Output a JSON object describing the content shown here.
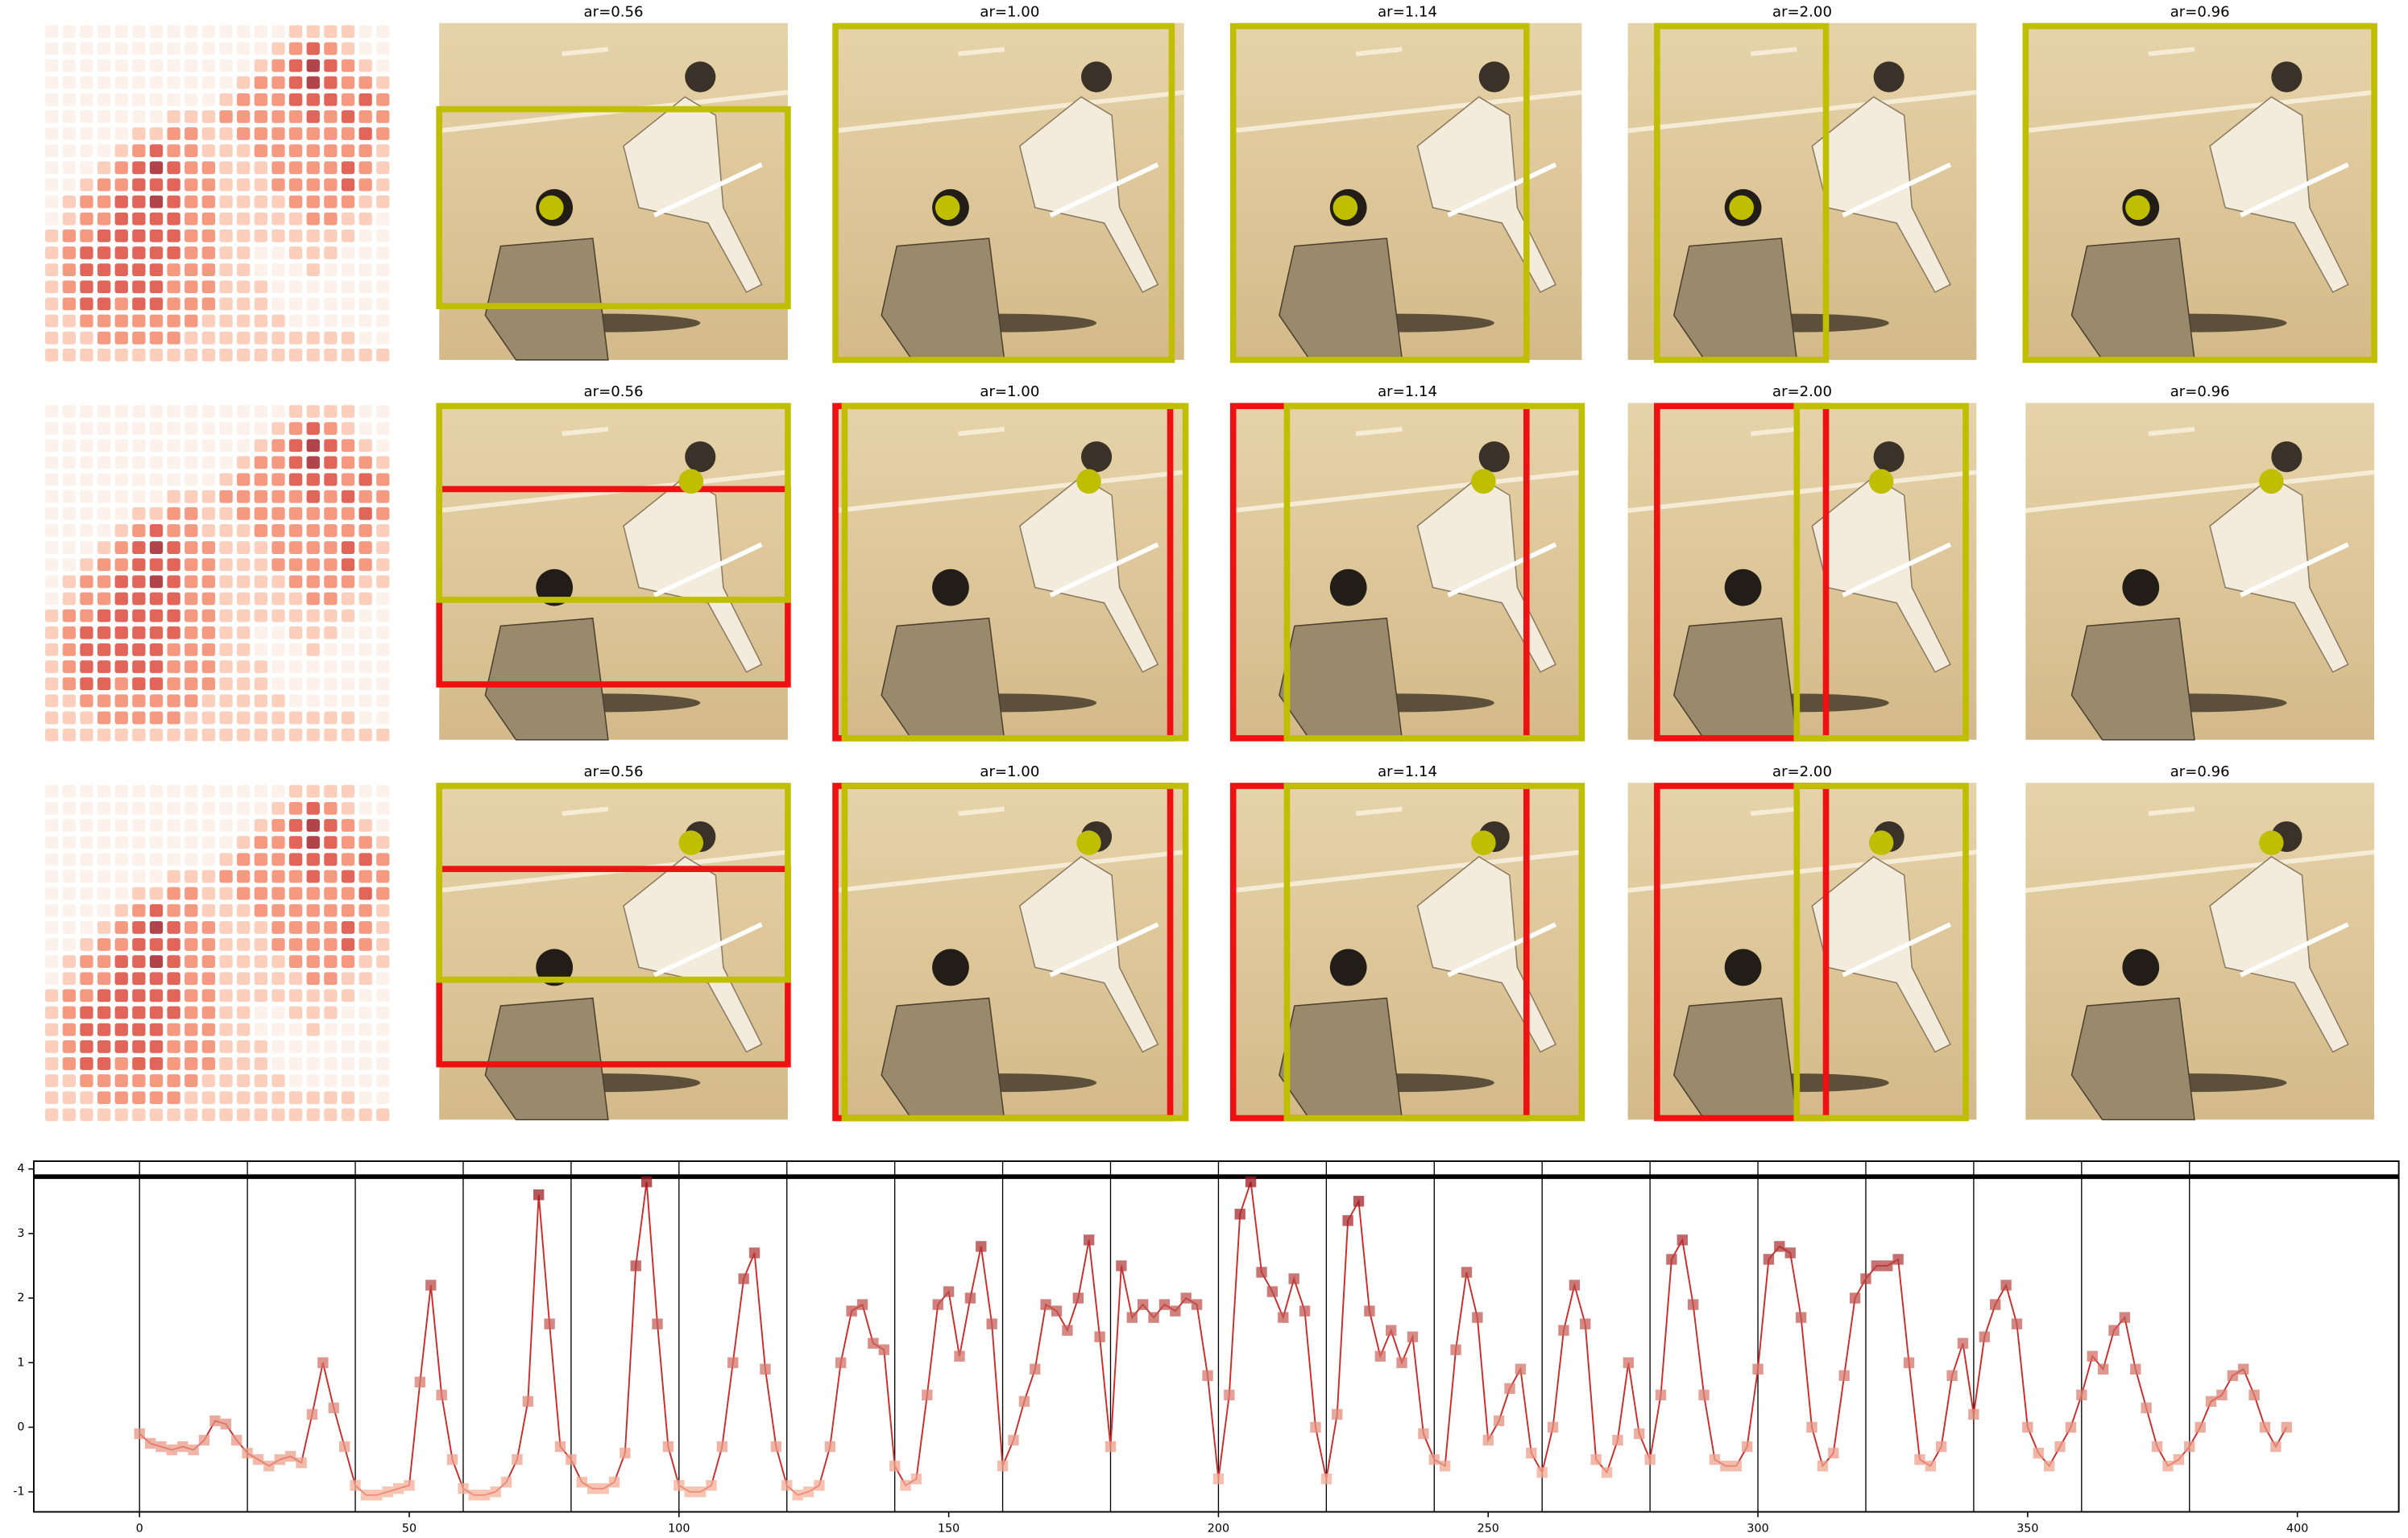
{
  "panels": {
    "rows": [
      {
        "titles": [
          "ar=0.56",
          "ar=1.00",
          "ar=1.14",
          "ar=2.00",
          "ar=0.96"
        ]
      },
      {
        "titles": [
          "ar=0.56",
          "ar=1.00",
          "ar=1.14",
          "ar=2.00",
          "ar=0.96"
        ]
      },
      {
        "titles": [
          "ar=0.56",
          "ar=1.00",
          "ar=1.14",
          "ar=2.00",
          "ar=0.96"
        ]
      }
    ],
    "heatmap": [
      [
        0,
        0,
        0,
        0,
        0,
        0,
        0,
        0,
        0,
        0,
        0,
        0,
        0,
        0,
        1,
        1,
        1,
        1,
        0,
        0
      ],
      [
        0,
        0,
        0,
        0,
        0,
        0,
        0,
        0,
        0,
        0,
        0,
        0,
        0,
        1,
        2,
        3,
        2,
        1,
        0,
        0
      ],
      [
        0,
        0,
        0,
        0,
        0,
        0,
        0,
        0,
        0,
        0,
        0,
        0,
        1,
        2,
        3,
        4,
        3,
        2,
        1,
        0
      ],
      [
        0,
        0,
        0,
        0,
        0,
        0,
        0,
        0,
        0,
        0,
        0,
        1,
        2,
        2,
        3,
        4,
        3,
        2,
        2,
        1
      ],
      [
        0,
        0,
        0,
        0,
        0,
        0,
        0,
        0,
        0,
        0,
        1,
        2,
        2,
        2,
        3,
        3,
        3,
        2,
        3,
        2
      ],
      [
        0,
        0,
        0,
        0,
        0,
        0,
        0,
        1,
        1,
        1,
        2,
        2,
        2,
        2,
        2,
        3,
        2,
        3,
        2,
        2
      ],
      [
        0,
        0,
        0,
        0,
        0,
        1,
        1,
        2,
        2,
        1,
        1,
        2,
        2,
        2,
        2,
        2,
        2,
        2,
        3,
        2
      ],
      [
        0,
        0,
        0,
        0,
        1,
        2,
        3,
        2,
        2,
        1,
        1,
        1,
        2,
        2,
        2,
        2,
        2,
        2,
        2,
        1
      ],
      [
        0,
        0,
        0,
        1,
        2,
        3,
        4,
        3,
        2,
        2,
        1,
        1,
        1,
        2,
        2,
        2,
        2,
        3,
        2,
        1
      ],
      [
        0,
        0,
        1,
        2,
        2,
        3,
        3,
        3,
        2,
        2,
        1,
        1,
        1,
        2,
        2,
        2,
        2,
        3,
        2,
        1
      ],
      [
        0,
        1,
        2,
        2,
        3,
        3,
        4,
        3,
        2,
        2,
        1,
        1,
        1,
        1,
        2,
        2,
        2,
        2,
        1,
        1
      ],
      [
        0,
        1,
        2,
        2,
        3,
        3,
        3,
        3,
        2,
        2,
        1,
        1,
        1,
        1,
        1,
        2,
        2,
        1,
        1,
        0
      ],
      [
        1,
        2,
        2,
        3,
        3,
        3,
        3,
        3,
        2,
        2,
        1,
        1,
        1,
        1,
        1,
        1,
        1,
        1,
        0,
        0
      ],
      [
        1,
        2,
        3,
        3,
        3,
        3,
        3,
        3,
        2,
        2,
        1,
        1,
        0,
        0,
        1,
        1,
        1,
        0,
        0,
        0
      ],
      [
        1,
        2,
        3,
        3,
        3,
        3,
        3,
        2,
        2,
        2,
        1,
        1,
        0,
        0,
        0,
        1,
        0,
        0,
        0,
        0
      ],
      [
        1,
        2,
        3,
        3,
        3,
        3,
        3,
        2,
        2,
        2,
        1,
        1,
        1,
        0,
        0,
        0,
        0,
        0,
        0,
        0
      ],
      [
        1,
        2,
        3,
        3,
        2,
        3,
        3,
        2,
        2,
        2,
        1,
        1,
        1,
        0,
        0,
        0,
        0,
        0,
        0,
        0
      ],
      [
        1,
        1,
        2,
        2,
        2,
        2,
        2,
        2,
        2,
        1,
        1,
        1,
        1,
        1,
        0,
        0,
        0,
        0,
        0,
        0
      ],
      [
        1,
        1,
        1,
        2,
        2,
        2,
        2,
        2,
        1,
        1,
        1,
        1,
        1,
        1,
        1,
        1,
        1,
        1,
        0,
        0
      ],
      [
        1,
        1,
        1,
        1,
        1,
        1,
        1,
        1,
        1,
        1,
        1,
        1,
        1,
        1,
        1,
        1,
        1,
        1,
        1,
        1
      ]
    ]
  },
  "chart_data": {
    "type": "line",
    "color": "#cc2a2a",
    "x": [
      0,
      2,
      4,
      6,
      8,
      10,
      12,
      14,
      16,
      18,
      20,
      22,
      24,
      26,
      28,
      30,
      32,
      34,
      36,
      38,
      40,
      42,
      44,
      46,
      48,
      50,
      52,
      54,
      56,
      58,
      60,
      62,
      64,
      66,
      68,
      70,
      72,
      74,
      76,
      78,
      80,
      82,
      84,
      86,
      88,
      90,
      92,
      94,
      96,
      98,
      100,
      102,
      104,
      106,
      108,
      110,
      112,
      114,
      116,
      118,
      120,
      122,
      124,
      126,
      128,
      130,
      132,
      134,
      136,
      138,
      140,
      142,
      144,
      146,
      148,
      150,
      152,
      154,
      156,
      158,
      160,
      162,
      164,
      166,
      168,
      170,
      172,
      174,
      176,
      178,
      180,
      182,
      184,
      186,
      188,
      190,
      192,
      194,
      196,
      198,
      200,
      202,
      204,
      206,
      208,
      210,
      212,
      214,
      216,
      218,
      220,
      222,
      224,
      226,
      228,
      230,
      232,
      234,
      236,
      238,
      240,
      242,
      244,
      246,
      248,
      250,
      252,
      254,
      256,
      258,
      260,
      262,
      264,
      266,
      268,
      270,
      272,
      274,
      276,
      278,
      280,
      282,
      284,
      286,
      288,
      290,
      292,
      294,
      296,
      298,
      300,
      302,
      304,
      306,
      308,
      310,
      312,
      314,
      316,
      318,
      320,
      322,
      324,
      326,
      328,
      330,
      332,
      334,
      336,
      338,
      340,
      342,
      344,
      346,
      348,
      350,
      352,
      354,
      356,
      358,
      360,
      362,
      364,
      366,
      368,
      370,
      372,
      374,
      376,
      378,
      380,
      382,
      384,
      386,
      388,
      390,
      392,
      394,
      396,
      398
    ],
    "values": [
      -0.1,
      -0.25,
      -0.3,
      -0.35,
      -0.3,
      -0.35,
      -0.2,
      0.1,
      0.05,
      -0.2,
      -0.4,
      -0.5,
      -0.6,
      -0.5,
      -0.45,
      -0.55,
      0.2,
      1.0,
      0.3,
      -0.3,
      -0.9,
      -1.05,
      -1.05,
      -1.0,
      -0.95,
      -0.9,
      0.7,
      2.2,
      0.5,
      -0.5,
      -0.95,
      -1.05,
      -1.05,
      -1.0,
      -0.85,
      -0.5,
      0.4,
      3.6,
      1.6,
      -0.3,
      -0.5,
      -0.85,
      -0.95,
      -0.95,
      -0.85,
      -0.4,
      2.5,
      3.8,
      1.6,
      -0.3,
      -0.9,
      -1.0,
      -1.0,
      -0.9,
      -0.3,
      1.0,
      2.3,
      2.7,
      0.9,
      -0.3,
      -0.9,
      -1.05,
      -1.0,
      -0.9,
      -0.3,
      1.0,
      1.8,
      1.9,
      1.3,
      1.2,
      -0.6,
      -0.9,
      -0.8,
      0.5,
      1.9,
      2.1,
      1.1,
      2.0,
      2.8,
      1.6,
      -0.6,
      -0.2,
      0.4,
      0.9,
      1.9,
      1.8,
      1.5,
      2.0,
      2.9,
      1.4,
      -0.3,
      2.5,
      1.7,
      1.9,
      1.7,
      1.9,
      1.8,
      2.0,
      1.9,
      0.8,
      -0.8,
      0.5,
      3.3,
      3.8,
      2.4,
      2.1,
      1.7,
      2.3,
      1.8,
      0.0,
      -0.8,
      0.2,
      3.2,
      3.5,
      1.8,
      1.1,
      1.5,
      1.0,
      1.4,
      -0.1,
      -0.5,
      -0.6,
      1.2,
      2.4,
      1.7,
      -0.2,
      0.1,
      0.6,
      0.9,
      -0.4,
      -0.7,
      0.0,
      1.5,
      2.2,
      1.6,
      -0.5,
      -0.7,
      -0.2,
      1.0,
      -0.1,
      -0.5,
      0.5,
      2.6,
      2.9,
      1.9,
      0.5,
      -0.5,
      -0.6,
      -0.6,
      -0.3,
      0.9,
      2.6,
      2.8,
      2.7,
      1.7,
      0.0,
      -0.6,
      -0.4,
      0.8,
      2.0,
      2.3,
      2.5,
      2.5,
      2.6,
      1.0,
      -0.5,
      -0.6,
      -0.3,
      0.8,
      1.3,
      0.2,
      1.4,
      1.9,
      2.2,
      1.6,
      0.0,
      -0.4,
      -0.6,
      -0.3,
      0.0,
      0.5,
      1.1,
      0.9,
      1.5,
      1.7,
      0.9,
      0.3,
      -0.3,
      -0.6,
      -0.5,
      -0.3,
      0.0,
      0.4,
      0.5,
      0.8,
      0.9,
      0.5,
      0.0,
      -0.3,
      0.0
    ],
    "xlim": [
      -19.6,
      418.8
    ],
    "ylim": [
      -1.31,
      4.12
    ],
    "xticks": [
      0,
      50,
      100,
      150,
      200,
      250,
      300,
      350,
      400
    ],
    "yticks": [
      -1,
      0,
      1,
      2,
      3,
      4
    ],
    "vlines": [
      0,
      20,
      40,
      60,
      80,
      100,
      120,
      140,
      160,
      180,
      200,
      220,
      240,
      260,
      280,
      300,
      320,
      340,
      360,
      380
    ],
    "hline": 3.88
  }
}
